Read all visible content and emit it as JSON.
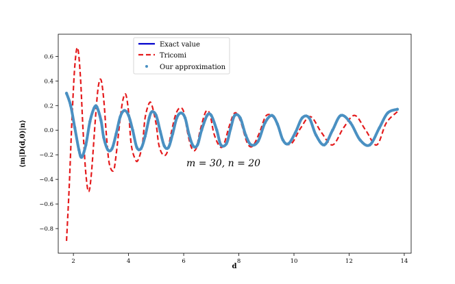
{
  "chart_data": {
    "type": "line",
    "xlabel": "d",
    "ylabel": "⟨m|D(d,0)|n⟩",
    "xlim": [
      1.45,
      14.25
    ],
    "ylim": [
      -1.0,
      0.78
    ],
    "xticks": [
      2,
      4,
      6,
      8,
      10,
      12,
      14
    ],
    "yticks": [
      -0.8,
      -0.6,
      -0.4,
      -0.2,
      0.0,
      0.2,
      0.4,
      0.6
    ],
    "xtick_labels": [
      "2",
      "4",
      "6",
      "8",
      "10",
      "12",
      "14"
    ],
    "ytick_labels": [
      "−0.8",
      "−0.6",
      "−0.4",
      "−0.2",
      "0.0",
      "0.2",
      "0.4",
      "0.6"
    ],
    "annotation": "m = 30,  n = 20",
    "legend_position": "top-center",
    "grid": false,
    "colors": {
      "exact": "#0000cc",
      "tricomi": "#e41a1c",
      "approx": "#4a90c2"
    },
    "series": [
      {
        "name": "Exact value",
        "style": "solid",
        "x": [
          1.75,
          1.9,
          2.05,
          2.2,
          2.3,
          2.45,
          2.6,
          2.75,
          2.85,
          3.0,
          3.1,
          3.25,
          3.4,
          3.55,
          3.7,
          3.85,
          4.0,
          4.15,
          4.3,
          4.45,
          4.6,
          4.75,
          4.85,
          5.0,
          5.15,
          5.3,
          5.45,
          5.6,
          5.75,
          5.9,
          6.05,
          6.2,
          6.35,
          6.5,
          6.65,
          6.85,
          7.0,
          7.2,
          7.35,
          7.55,
          7.7,
          7.85,
          8.05,
          8.25,
          8.45,
          8.7,
          8.95,
          9.2,
          9.4,
          9.6,
          9.8,
          10.05,
          10.3,
          10.55,
          10.8,
          11.1,
          11.4,
          11.7,
          12.05,
          12.4,
          12.75,
          13.1,
          13.4,
          13.75
        ],
        "y": [
          0.3,
          0.2,
          0.02,
          -0.16,
          -0.22,
          -0.12,
          0.07,
          0.18,
          0.19,
          0.08,
          -0.06,
          -0.16,
          -0.15,
          -0.03,
          0.11,
          0.16,
          0.12,
          0.0,
          -0.14,
          -0.15,
          -0.05,
          0.1,
          0.15,
          0.12,
          -0.01,
          -0.13,
          -0.14,
          -0.03,
          0.1,
          0.14,
          0.1,
          -0.04,
          -0.13,
          -0.12,
          0.0,
          0.12,
          0.12,
          0.0,
          -0.12,
          -0.11,
          0.01,
          0.12,
          0.1,
          -0.04,
          -0.12,
          -0.09,
          0.06,
          0.12,
          0.05,
          -0.08,
          -0.11,
          -0.02,
          0.1,
          0.1,
          -0.04,
          -0.12,
          0.0,
          0.12,
          0.06,
          -0.08,
          -0.12,
          0.02,
          0.14,
          0.17
        ]
      },
      {
        "name": "Tricomi",
        "style": "dashed",
        "x": [
          1.75,
          1.85,
          1.95,
          2.05,
          2.15,
          2.25,
          2.35,
          2.45,
          2.55,
          2.65,
          2.8,
          2.9,
          3.0,
          3.1,
          3.2,
          3.3,
          3.45,
          3.55,
          3.7,
          3.8,
          3.9,
          4.0,
          4.1,
          4.25,
          4.35,
          4.5,
          4.6,
          4.75,
          4.85,
          5.0,
          5.1,
          5.25,
          5.4,
          5.55,
          5.7,
          5.85,
          6.0,
          6.15,
          6.3,
          6.45,
          6.6,
          6.8,
          6.95,
          7.1,
          7.3,
          7.45,
          7.65,
          7.85,
          8.05,
          8.3,
          8.5,
          8.75,
          9.0,
          9.3,
          9.6,
          9.9,
          10.25,
          10.6,
          11.0,
          11.4,
          11.8,
          12.2,
          12.6,
          13.0,
          13.35,
          13.75
        ],
        "y": [
          -0.9,
          -0.45,
          0.1,
          0.52,
          0.67,
          0.45,
          0.0,
          -0.35,
          -0.5,
          -0.36,
          0.1,
          0.35,
          0.41,
          0.25,
          -0.05,
          -0.27,
          -0.33,
          -0.2,
          0.1,
          0.25,
          0.29,
          0.15,
          -0.12,
          -0.24,
          -0.24,
          -0.12,
          0.1,
          0.22,
          0.2,
          0.05,
          -0.12,
          -0.2,
          -0.18,
          -0.02,
          0.12,
          0.18,
          0.15,
          -0.03,
          -0.15,
          -0.15,
          0.0,
          0.15,
          0.13,
          -0.03,
          -0.13,
          -0.12,
          0.03,
          0.14,
          0.08,
          -0.1,
          -0.13,
          -0.02,
          0.12,
          0.09,
          -0.08,
          -0.11,
          0.02,
          0.11,
          -0.02,
          -0.12,
          0.02,
          0.12,
          0.0,
          -0.12,
          0.06,
          0.15
        ]
      },
      {
        "name": "Our approximation",
        "style": "dots",
        "x": [
          1.75,
          1.9,
          2.05,
          2.2,
          2.3,
          2.45,
          2.6,
          2.75,
          2.85,
          3.0,
          3.1,
          3.25,
          3.4,
          3.55,
          3.7,
          3.85,
          4.0,
          4.15,
          4.3,
          4.45,
          4.6,
          4.75,
          4.85,
          5.0,
          5.15,
          5.3,
          5.45,
          5.6,
          5.75,
          5.9,
          6.05,
          6.2,
          6.35,
          6.5,
          6.65,
          6.85,
          7.0,
          7.2,
          7.35,
          7.55,
          7.7,
          7.85,
          8.05,
          8.25,
          8.45,
          8.7,
          8.95,
          9.2,
          9.4,
          9.6,
          9.8,
          10.05,
          10.3,
          10.55,
          10.8,
          11.1,
          11.4,
          11.7,
          12.05,
          12.4,
          12.75,
          13.1,
          13.4,
          13.75
        ],
        "y": [
          0.3,
          0.2,
          0.02,
          -0.16,
          -0.22,
          -0.12,
          0.07,
          0.18,
          0.19,
          0.08,
          -0.06,
          -0.16,
          -0.15,
          -0.03,
          0.11,
          0.16,
          0.12,
          0.0,
          -0.14,
          -0.15,
          -0.05,
          0.1,
          0.15,
          0.12,
          -0.01,
          -0.13,
          -0.14,
          -0.03,
          0.1,
          0.14,
          0.1,
          -0.04,
          -0.13,
          -0.12,
          0.0,
          0.12,
          0.12,
          0.0,
          -0.12,
          -0.11,
          0.01,
          0.12,
          0.1,
          -0.04,
          -0.12,
          -0.09,
          0.06,
          0.12,
          0.05,
          -0.08,
          -0.11,
          -0.02,
          0.1,
          0.1,
          -0.04,
          -0.12,
          0.0,
          0.12,
          0.06,
          -0.08,
          -0.12,
          0.02,
          0.14,
          0.17
        ]
      }
    ]
  }
}
